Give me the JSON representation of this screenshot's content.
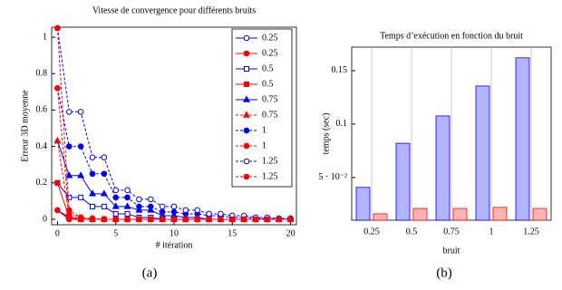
{
  "chart_data": [
    {
      "type": "line",
      "title": "Vitesse de convergence pour différents bruits",
      "xlabel": "# itération",
      "ylabel": "Erreur 3D moyenne",
      "x": [
        0,
        1,
        2,
        3,
        4,
        5,
        6,
        7,
        8,
        9,
        10,
        11,
        12,
        13,
        14,
        15,
        16,
        17,
        18,
        19,
        20
      ],
      "xlim": [
        -0.5,
        20.5
      ],
      "xticks": [
        0,
        5,
        10,
        15,
        20
      ],
      "ylim": [
        -0.03,
        1.055
      ],
      "yticks": [
        0,
        0.2,
        0.4,
        0.6,
        0.8,
        1
      ],
      "legend": "upper right",
      "series": [
        {
          "name": "0.25",
          "color": "#0000ff",
          "marker": "circle",
          "filled": false,
          "dashed": false,
          "values": [
            0.05,
            0.01,
            0,
            0,
            0,
            0,
            0,
            0,
            0,
            0,
            0,
            0,
            0,
            0,
            0,
            0,
            0,
            0,
            0,
            0,
            0
          ]
        },
        {
          "name": "0.25",
          "color": "#ff0000",
          "marker": "circle",
          "filled": true,
          "dashed": false,
          "values": [
            0.05,
            0,
            0,
            0,
            0,
            0,
            0,
            0,
            0,
            0,
            0,
            0,
            0,
            0,
            0,
            0,
            0,
            0,
            0,
            0,
            0
          ]
        },
        {
          "name": "0.5",
          "color": "#0000ff",
          "marker": "square",
          "filled": false,
          "dashed": false,
          "values": [
            0.2,
            0.12,
            0.12,
            0.07,
            0.07,
            0.03,
            0.03,
            0.01,
            0.01,
            0,
            0,
            0,
            0,
            0,
            0,
            0,
            0,
            0,
            0,
            0,
            0
          ]
        },
        {
          "name": "0.5",
          "color": "#ff0000",
          "marker": "square",
          "filled": true,
          "dashed": false,
          "values": [
            0.2,
            0.01,
            0,
            0,
            0,
            0,
            0,
            0,
            0,
            0,
            0,
            0,
            0,
            0,
            0,
            0,
            0,
            0,
            0,
            0,
            0
          ]
        },
        {
          "name": "0.75",
          "color": "#0000ff",
          "marker": "triangle",
          "filled": true,
          "dashed": false,
          "values": [
            0.43,
            0.24,
            0.24,
            0.14,
            0.14,
            0.07,
            0.07,
            0.05,
            0.05,
            0.02,
            0.02,
            0.01,
            0.01,
            0,
            0,
            0,
            0,
            0,
            0,
            0,
            0
          ]
        },
        {
          "name": "0.75",
          "color": "#ff0000",
          "marker": "triangle",
          "filled": true,
          "dashed": true,
          "values": [
            0.43,
            0.02,
            0,
            0,
            0,
            0,
            0,
            0,
            0,
            0,
            0,
            0,
            0,
            0,
            0,
            0,
            0,
            0,
            0,
            0,
            0
          ]
        },
        {
          "name": "1",
          "color": "#0000ff",
          "marker": "circle",
          "filled": true,
          "dashed": true,
          "values": [
            0.72,
            0.4,
            0.4,
            0.25,
            0.25,
            0.12,
            0.12,
            0.07,
            0.07,
            0.04,
            0.04,
            0.03,
            0.03,
            0.02,
            0.02,
            0.01,
            0.01,
            0.005,
            0.005,
            0,
            0
          ]
        },
        {
          "name": "1",
          "color": "#ff0000",
          "marker": "circle",
          "filled": true,
          "dashed": true,
          "values": [
            0.72,
            0.03,
            0.01,
            0,
            0,
            0,
            0,
            0,
            0,
            0,
            0,
            0,
            0,
            0,
            0,
            0,
            0,
            0,
            0,
            0,
            0
          ]
        },
        {
          "name": "1.25",
          "color": "#0000ff",
          "marker": "circle",
          "filled": false,
          "dashed": true,
          "values": [
            1.05,
            0.59,
            0.59,
            0.34,
            0.34,
            0.16,
            0.16,
            0.11,
            0.11,
            0.07,
            0.07,
            0.05,
            0.05,
            0.03,
            0.03,
            0.02,
            0.02,
            0.01,
            0.01,
            0.005,
            0.005
          ]
        },
        {
          "name": "1.25",
          "color": "#ff0000",
          "marker": "circle",
          "filled": true,
          "dashed": true,
          "values": [
            1.05,
            0.05,
            0.01,
            0.005,
            0,
            0,
            0,
            0,
            0,
            0,
            0,
            0,
            0,
            0,
            0,
            0,
            0,
            0,
            0,
            0,
            0
          ]
        }
      ]
    },
    {
      "type": "bar",
      "title": "Temps d’exécution en fonction du bruit",
      "xlabel": "bruit",
      "ylabel": "temps (sec)",
      "categories": [
        "0.25",
        "0.5",
        "0.75",
        "1",
        "1.25"
      ],
      "ylim": [
        0.01,
        0.172
      ],
      "yticks": [
        {
          "value": 0.05,
          "label": "5 · 10⁻²"
        },
        0.1,
        0.15
      ],
      "grid": "x",
      "series": [
        {
          "color": "#b3b3ff",
          "edgecolor": "#0000ff",
          "values": [
            0.0407,
            0.082,
            0.1076,
            0.1356,
            0.162
          ]
        },
        {
          "color": "#ffb3b3",
          "edgecolor": "#ff0000",
          "values": [
            0.016,
            0.021,
            0.021,
            0.022,
            0.021
          ]
        }
      ]
    }
  ],
  "captions": [
    "(a)",
    "(b)"
  ]
}
